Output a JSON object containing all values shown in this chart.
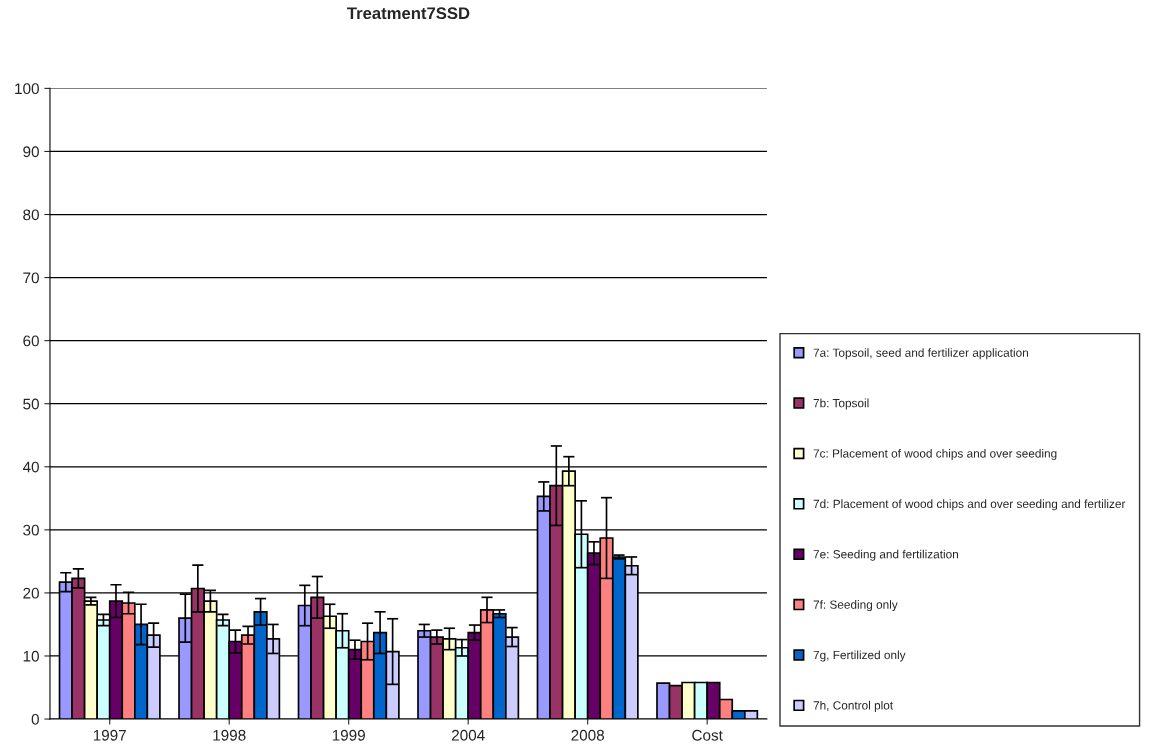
{
  "chart_data": {
    "type": "bar",
    "title": "Treatment7SSD",
    "categories": [
      "1997",
      "1998",
      "1999",
      "2004",
      "2008",
      "Cost"
    ],
    "ylim": [
      0,
      100
    ],
    "yticks": [
      0,
      10,
      20,
      30,
      40,
      50,
      60,
      70,
      80,
      90,
      100
    ],
    "grid": "y",
    "legend": "right",
    "series": [
      {
        "name": "7a: Topsoil, seed and fertilizer application",
        "color": "#9999ff",
        "values": [
          21.7,
          16.0,
          18.0,
          14.0,
          35.3,
          5.7
        ],
        "errors": [
          1.5,
          3.8,
          3.2,
          1.0,
          2.3,
          null
        ]
      },
      {
        "name": "7b: Topsoil",
        "color": "#993366",
        "values": [
          22.3,
          20.7,
          19.3,
          13.0,
          37.0,
          5.3
        ],
        "errors": [
          1.5,
          3.7,
          3.3,
          1.1,
          6.3,
          null
        ]
      },
      {
        "name": "7c: Placement of wood chips and over seeding",
        "color": "#ffffcc",
        "values": [
          18.7,
          18.7,
          16.3,
          12.7,
          39.3,
          5.8
        ],
        "errors": [
          0.6,
          1.7,
          1.9,
          1.7,
          2.3,
          null
        ]
      },
      {
        "name": "7d: Placement of wood chips and over seeding and fertilizer",
        "color": "#ccffff",
        "values": [
          15.7,
          15.7,
          14.0,
          11.3,
          29.3,
          5.8
        ],
        "errors": [
          0.9,
          0.9,
          2.7,
          1.3,
          5.3,
          null
        ]
      },
      {
        "name": "7e: Seeding and fertilization",
        "color": "#660066",
        "values": [
          18.7,
          12.3,
          11.0,
          13.7,
          26.3,
          5.8
        ],
        "errors": [
          2.6,
          1.8,
          1.5,
          1.2,
          1.8,
          null
        ]
      },
      {
        "name": "7f: Seeding only",
        "color": "#ff8080",
        "values": [
          18.4,
          13.3,
          12.3,
          17.3,
          28.7,
          3.1
        ],
        "errors": [
          1.7,
          1.4,
          2.9,
          2.0,
          6.4,
          null
        ]
      },
      {
        "name": "7g, Fertilized only",
        "color": "#0066cc",
        "values": [
          15.0,
          17.0,
          13.7,
          16.7,
          25.7,
          1.3
        ],
        "errors": [
          3.2,
          2.1,
          3.3,
          0.6,
          0.3,
          null
        ]
      },
      {
        "name": "7h, Control plot",
        "color": "#ccccff",
        "values": [
          13.3,
          12.7,
          10.7,
          13.0,
          24.3,
          1.3
        ],
        "errors": [
          1.9,
          2.3,
          5.2,
          1.5,
          1.4,
          null
        ]
      }
    ]
  }
}
